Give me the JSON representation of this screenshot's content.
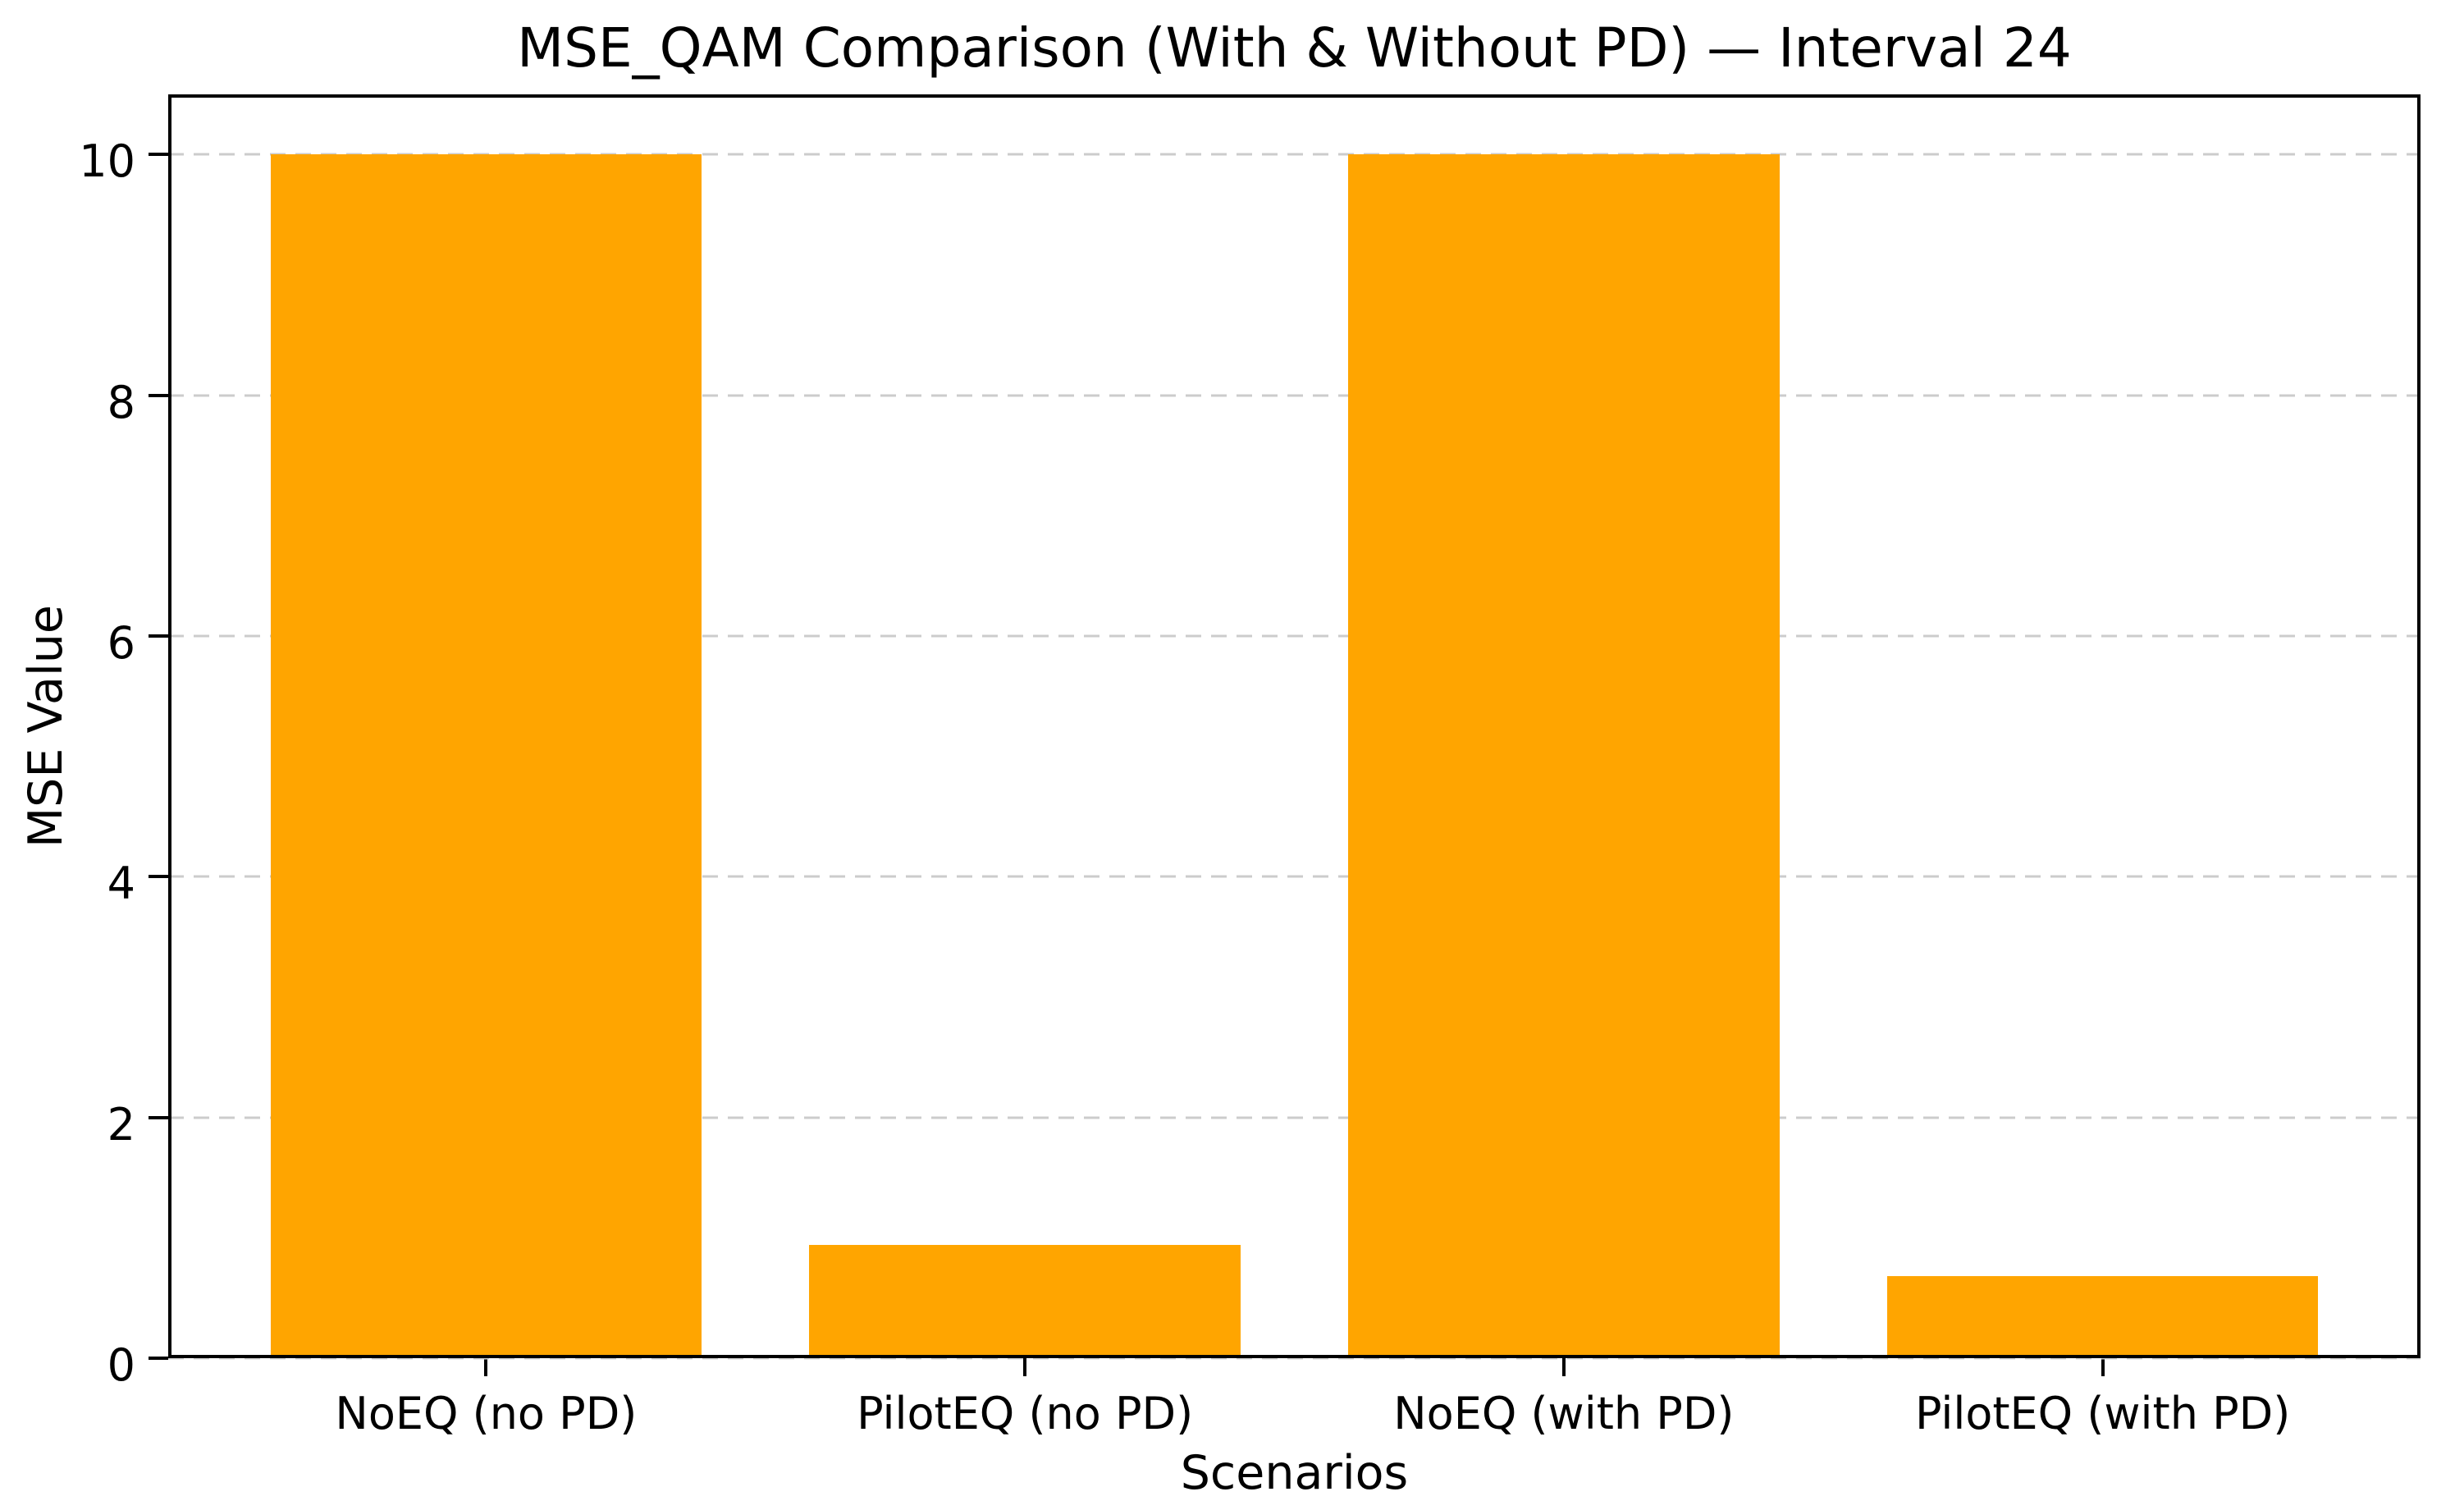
{
  "figure": {
    "kind": "matplotlib-style bar chart"
  },
  "chart_data": {
    "type": "bar",
    "title": "MSE_QAM Comparison (With & Without PD) — Interval 24",
    "xlabel": "Scenarios",
    "ylabel": "MSE Value",
    "categories": [
      "NoEQ (no PD)",
      "PilotEQ (no PD)",
      "NoEQ (with PD)",
      "PilotEQ (with PD)"
    ],
    "values": [
      10.0,
      0.94,
      10.0,
      0.68
    ],
    "yticks": [
      0,
      2,
      4,
      6,
      8,
      10
    ],
    "ylim": [
      0,
      10.5
    ],
    "bar_color": "#FFA500",
    "bar_width_fraction": 0.8,
    "grid": "y-axis only, dashed",
    "grid_color": "#cccccc",
    "spine_color": "#000000",
    "background_color": "#ffffff",
    "legend": "none"
  }
}
